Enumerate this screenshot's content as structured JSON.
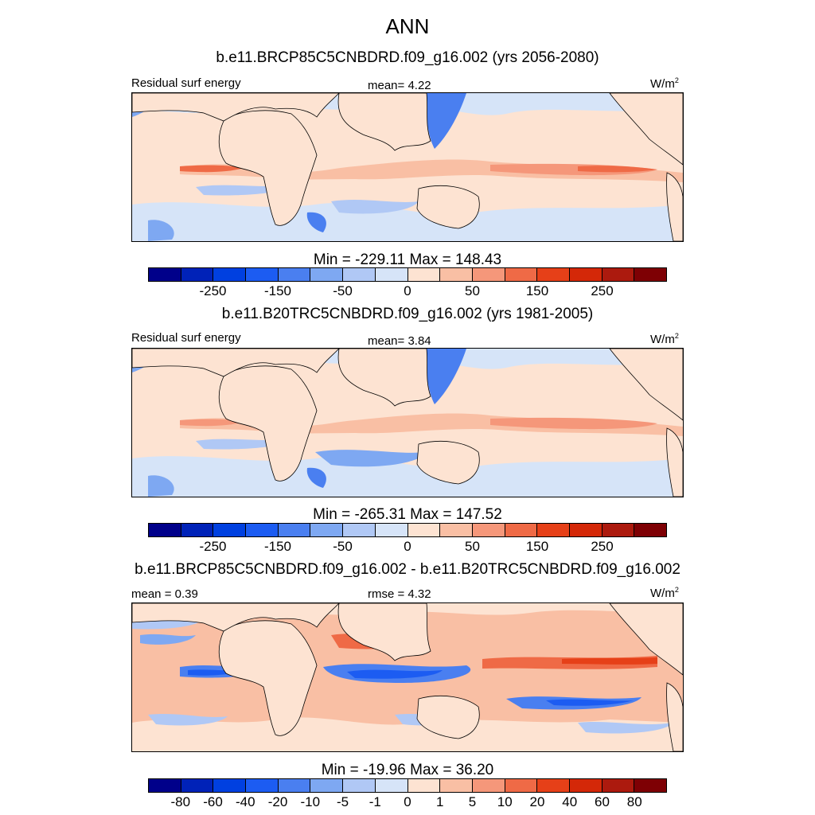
{
  "main_title": "ANN",
  "colors": {
    "palette": [
      "#00008a",
      "#0022b8",
      "#0040e0",
      "#1c5cf2",
      "#4a7ff0",
      "#7ea8f2",
      "#b0c8f5",
      "#d6e4f8",
      "#fde3d2",
      "#f9bfa4",
      "#f5977a",
      "#ef6a46",
      "#e64018",
      "#d42808",
      "#ac1a0e",
      "#7e0004"
    ],
    "land": "#fde3d2",
    "ocean_base": "#fde3d2"
  },
  "panels": [
    {
      "subtitle": "b.e11.BRCP85C5CNBDRD.f09_g16.002 (yrs 2056-2080)",
      "left_label": "Residual surf energy",
      "center_label": "mean=   4.22",
      "units_base": "W/m",
      "units_exp": "2",
      "minmax": "Min = -229.11 Max = 148.43",
      "colorbar_ticks": [
        "-250",
        "-150",
        "-50",
        "0",
        "50",
        "150",
        "250"
      ]
    },
    {
      "subtitle": "b.e11.B20TRC5CNBDRD.f09_g16.002 (yrs 1981-2005)",
      "left_label": "Residual surf energy",
      "center_label": "mean=   3.84",
      "units_base": "W/m",
      "units_exp": "2",
      "minmax": "Min = -265.31 Max = 147.52",
      "colorbar_ticks": [
        "-250",
        "-150",
        "-50",
        "0",
        "50",
        "150",
        "250"
      ]
    },
    {
      "subtitle": "b.e11.BRCP85C5CNBDRD.f09_g16.002 - b.e11.B20TRC5CNBDRD.f09_g16.002",
      "left_label": "mean =   0.39",
      "center_label": "rmse =   4.32",
      "units_base": "W/m",
      "units_exp": "2",
      "minmax": "Min = -19.96 Max =  36.20",
      "colorbar_ticks": [
        "-80",
        "-60",
        "-40",
        "-20",
        "-10",
        "-5",
        "-1",
        "0",
        "1",
        "5",
        "10",
        "20",
        "40",
        "60",
        "80"
      ]
    }
  ],
  "chart_data": [
    {
      "type": "heatmap",
      "title": "b.e11.BRCP85C5CNBDRD.f09_g16.002 (yrs 2056-2080)",
      "variable": "Residual surf energy",
      "units": "W/m2",
      "mean": 4.22,
      "min": -229.11,
      "max": 148.43,
      "levels": [
        -250,
        -150,
        -50,
        0,
        50,
        150,
        250
      ],
      "colorbar_ticks": [
        "-250",
        "-150",
        "-50",
        "0",
        "50",
        "150",
        "250"
      ]
    },
    {
      "type": "heatmap",
      "title": "b.e11.B20TRC5CNBDRD.f09_g16.002 (yrs 1981-2005)",
      "variable": "Residual surf energy",
      "units": "W/m2",
      "mean": 3.84,
      "min": -265.31,
      "max": 147.52,
      "levels": [
        -250,
        -150,
        -50,
        0,
        50,
        150,
        250
      ],
      "colorbar_ticks": [
        "-250",
        "-150",
        "-50",
        "0",
        "50",
        "150",
        "250"
      ]
    },
    {
      "type": "heatmap",
      "title": "b.e11.BRCP85C5CNBDRD.f09_g16.002 - b.e11.B20TRC5CNBDRD.f09_g16.002",
      "units": "W/m2",
      "mean": 0.39,
      "rmse": 4.32,
      "min": -19.96,
      "max": 36.2,
      "levels": [
        -80,
        -60,
        -40,
        -20,
        -10,
        -5,
        -1,
        0,
        1,
        5,
        10,
        20,
        40,
        60,
        80
      ],
      "colorbar_ticks": [
        "-80",
        "-60",
        "-40",
        "-20",
        "-10",
        "-5",
        "-1",
        "0",
        "1",
        "5",
        "10",
        "20",
        "40",
        "60",
        "80"
      ]
    }
  ]
}
